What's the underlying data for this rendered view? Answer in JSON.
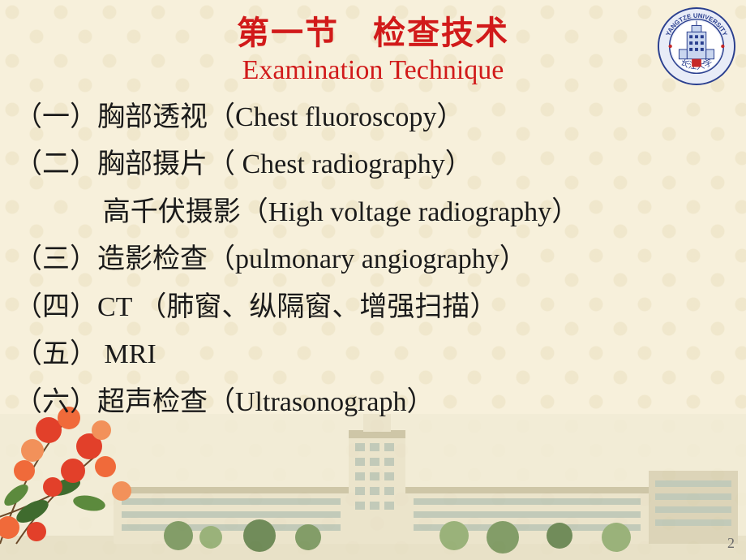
{
  "title": {
    "cn": "第一节　检查技术",
    "en": "Examination Technique"
  },
  "items": [
    {
      "num": "（一）",
      "cn": "胸部透视",
      "en_open": "（",
      "en": "Chest  fluoroscopy",
      "en_close": "）"
    },
    {
      "num": "（二）",
      "cn": "胸部摄片",
      "en_open": "（ ",
      "en": "Chest  radiography",
      "en_close": "）"
    },
    {
      "num": "",
      "cn": "高千伏摄影",
      "en_open": "（",
      "en": "High voltage radiography",
      "en_close": "）",
      "indent": true
    },
    {
      "num": "（三）",
      "cn": "造影检查",
      "en_open": "（",
      "en": "pulmonary  angiography",
      "en_close": "）"
    },
    {
      "num": "（四）",
      "cn": "CT  （肺窗、纵隔窗、增强扫描）",
      "en_open": "",
      "en": "",
      "en_close": ""
    },
    {
      "num": "（五） ",
      "cn": "MRI",
      "en_open": "",
      "en": "",
      "en_close": ""
    },
    {
      "num": "（六）",
      "cn": "超声检查",
      "en_open": "（",
      "en": "Ultrasonograph",
      "en_close": "）"
    }
  ],
  "page_number": "2",
  "logo": {
    "top_text": "YANGTZE UNIVERSITY",
    "bottom_text": "长江大学",
    "ring_outer": "#2a3f8f",
    "ring_fill": "#e8ecf7",
    "ring_red": "#c62828",
    "seal_red": "#c62828",
    "building_fill": "#c9d6ef",
    "building_stroke": "#2a3f8f",
    "sky": "#ffffff"
  },
  "campus": {
    "sky": "#f2ecd6",
    "building_main": "#e9e2c9",
    "building_shadow": "#d8d0b2",
    "roof": "#c7bf9f",
    "window": "#b9c4b4",
    "ground": "#e6dfc4",
    "tree1": "#6f8f55",
    "tree2": "#8aa86a",
    "tree3": "#5a7b44"
  },
  "flowers": {
    "petal1": "#e2402a",
    "petal2": "#f06a3a",
    "petal3": "#f2915a",
    "leaf1": "#3f6b2e",
    "leaf2": "#5c8a3d",
    "branch": "#6b4a2a"
  },
  "colors": {
    "title": "#d11a1a",
    "text": "#1a1a1a",
    "bg": "#f7f0db",
    "pagenum": "#6b6b6b"
  },
  "typography": {
    "title_cn_size": 40,
    "title_en_size": 34,
    "body_size": 34,
    "line_height": 1.72
  }
}
